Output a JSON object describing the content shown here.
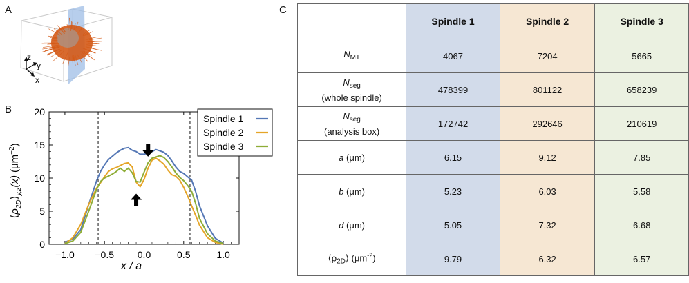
{
  "panels": {
    "a": "A",
    "b": "B",
    "c": "C"
  },
  "panel_a": {
    "axes": {
      "z": "z",
      "y": "y",
      "x": "x"
    },
    "colors": {
      "spindle": "#d45a17",
      "plane": "#9fbde6"
    }
  },
  "chart_data": {
    "type": "line",
    "xlabel": "x / a",
    "ylabel": "⟨ρ2D⟩y,z(x) (μm⁻²)",
    "ylabel_parts": {
      "open": "⟨",
      "rho": "ρ",
      "rho_sub": "2D",
      "close": "⟩",
      "sub": "y,z",
      "fx": "(x)",
      "unit": "(μm",
      "exp": "−2",
      "unit_close": ")"
    },
    "xlim": [
      -1.2,
      1.2
    ],
    "ylim": [
      0,
      20
    ],
    "xticks": [
      -1.0,
      -0.5,
      0.0,
      0.5,
      1.0
    ],
    "xtick_labels": [
      "−1.0",
      "−0.5",
      "0.0",
      "0.5",
      "1.0"
    ],
    "yticks": [
      0,
      5,
      10,
      15,
      20
    ],
    "ytick_labels": [
      "0",
      "5",
      "10",
      "15",
      "20"
    ],
    "vlines": [
      -0.58,
      0.58
    ],
    "legend_position": "top-right",
    "annotations": [
      {
        "type": "arrow-down",
        "x": 0.05,
        "y": 14.7
      },
      {
        "type": "arrow-up",
        "x": -0.1,
        "y": 6.2
      }
    ],
    "series": [
      {
        "name": "Spindle 1",
        "color": "#5477b5",
        "x": [
          -1.0,
          -0.9,
          -0.8,
          -0.7,
          -0.6,
          -0.55,
          -0.5,
          -0.45,
          -0.4,
          -0.35,
          -0.3,
          -0.25,
          -0.2,
          -0.15,
          -0.1,
          -0.05,
          0.0,
          0.05,
          0.1,
          0.15,
          0.2,
          0.25,
          0.3,
          0.35,
          0.4,
          0.45,
          0.5,
          0.55,
          0.6,
          0.65,
          0.7,
          0.8,
          0.9,
          1.0
        ],
        "y": [
          0.3,
          0.8,
          2.2,
          6.0,
          9.6,
          11.0,
          12.0,
          12.8,
          13.3,
          13.8,
          14.2,
          14.5,
          14.6,
          14.2,
          14.0,
          13.6,
          13.6,
          13.8,
          14.0,
          14.3,
          14.1,
          13.9,
          13.4,
          12.6,
          11.7,
          11.0,
          10.7,
          10.2,
          9.7,
          8.0,
          5.8,
          2.8,
          0.9,
          0.2
        ]
      },
      {
        "name": "Spindle 2",
        "color": "#e5a528",
        "x": [
          -1.0,
          -0.9,
          -0.8,
          -0.7,
          -0.6,
          -0.55,
          -0.5,
          -0.45,
          -0.4,
          -0.35,
          -0.3,
          -0.25,
          -0.2,
          -0.15,
          -0.1,
          -0.05,
          0.0,
          0.05,
          0.1,
          0.15,
          0.2,
          0.25,
          0.3,
          0.35,
          0.4,
          0.45,
          0.5,
          0.55,
          0.6,
          0.65,
          0.7,
          0.8,
          0.9,
          1.0
        ],
        "y": [
          0.1,
          1.0,
          3.0,
          6.0,
          8.5,
          9.3,
          10.2,
          11.0,
          11.4,
          11.6,
          11.9,
          12.2,
          12.3,
          11.7,
          9.4,
          8.7,
          9.8,
          11.5,
          12.7,
          13.0,
          12.6,
          12.1,
          11.2,
          10.5,
          10.3,
          9.7,
          8.6,
          7.3,
          5.8,
          4.4,
          2.9,
          1.0,
          0.3,
          0.0
        ]
      },
      {
        "name": "Spindle 3",
        "color": "#8ead37",
        "x": [
          -1.0,
          -0.9,
          -0.8,
          -0.7,
          -0.6,
          -0.55,
          -0.5,
          -0.45,
          -0.4,
          -0.35,
          -0.3,
          -0.25,
          -0.2,
          -0.15,
          -0.1,
          -0.05,
          0.0,
          0.05,
          0.1,
          0.15,
          0.2,
          0.25,
          0.3,
          0.35,
          0.4,
          0.45,
          0.5,
          0.55,
          0.6,
          0.65,
          0.7,
          0.8,
          0.9,
          1.0
        ],
        "y": [
          0.1,
          0.5,
          1.8,
          5.0,
          8.3,
          9.5,
          10.0,
          10.3,
          10.6,
          11.0,
          11.5,
          11.0,
          11.5,
          10.8,
          9.5,
          9.4,
          10.9,
          12.3,
          13.0,
          13.2,
          13.4,
          13.1,
          12.5,
          11.7,
          10.8,
          10.1,
          9.6,
          8.9,
          8.0,
          6.2,
          3.9,
          1.6,
          0.5,
          0.1
        ]
      }
    ]
  },
  "table": {
    "headers": [
      "",
      "Spindle 1",
      "Spindle 2",
      "Spindle 3"
    ],
    "header_colors": [
      "#ffffff",
      "#d2dbea",
      "#f6e7d3",
      "#ebf1e1"
    ],
    "rows": [
      {
        "label_main": "N",
        "label_sub": "MT",
        "label_extra": "",
        "values": [
          "4067",
          "7204",
          "5665"
        ]
      },
      {
        "label_main": "N",
        "label_sub": "seg",
        "label_extra": "(whole spindle)",
        "values": [
          "478399",
          "801122",
          "658239"
        ]
      },
      {
        "label_main": "N",
        "label_sub": "seg",
        "label_extra": "(analysis box)",
        "values": [
          "172742",
          "292646",
          "210619"
        ]
      },
      {
        "label_main": "a",
        "label_unit": " (μm)",
        "values": [
          "6.15",
          "9.12",
          "7.85"
        ]
      },
      {
        "label_main": "b",
        "label_unit": " (μm)",
        "values": [
          "5.23",
          "6.03",
          "5.58"
        ]
      },
      {
        "label_main": "d",
        "label_unit": " (μm)",
        "values": [
          "5.05",
          "7.32",
          "6.68"
        ]
      },
      {
        "label_open": "⟨ρ",
        "label_sub": "2D",
        "label_close": "⟩ (μm",
        "label_exp": "-2",
        "label_end": ")",
        "values": [
          "9.79",
          "6.32",
          "6.57"
        ]
      }
    ]
  }
}
